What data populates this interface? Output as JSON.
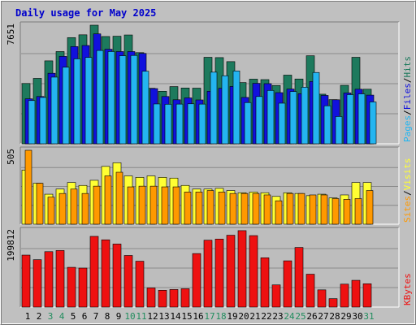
{
  "title": "Daily usage for May 2025",
  "colors": {
    "background": "#C0C0C0",
    "plot_bg": "#BDBDBD",
    "title": "#0000CC",
    "weekday_label": "#000000",
    "weekend_label": "#218D5E",
    "hits": "#1D7A5D",
    "files": "#1111DD",
    "pages": "#24B5F0",
    "visits": "#FFFF33",
    "sites": "#FF9900",
    "kbytes": "#EE1111"
  },
  "chart_data": {
    "type": "bar",
    "title": "Daily usage for May 2025",
    "categories": [
      "1",
      "2",
      "3",
      "4",
      "5",
      "6",
      "7",
      "8",
      "9",
      "10",
      "11",
      "12",
      "13",
      "14",
      "15",
      "16",
      "17",
      "18",
      "19",
      "20",
      "21",
      "22",
      "23",
      "24",
      "25",
      "26",
      "27",
      "28",
      "29",
      "30",
      "31"
    ],
    "weekend_days": [
      "3",
      "4",
      "10",
      "11",
      "17",
      "18",
      "24",
      "25",
      "31"
    ],
    "panels": [
      {
        "id": "hits_files_pages",
        "ylabel": "Pages / Files / Hits",
        "ylabel_parts": [
          "Pages",
          "/",
          "Files",
          "/",
          "Hits"
        ],
        "max_label": "7651",
        "ylim": [
          0,
          7651
        ],
        "series": [
          {
            "name": "Hits",
            "values": [
              3890,
              4220,
              5350,
              5950,
              6850,
              7030,
              7651,
              6920,
              6940,
              7020,
              5880,
              3580,
              3390,
              3690,
              3600,
              3590,
              5580,
              5560,
              5300,
              3950,
              4170,
              4140,
              3760,
              4430,
              4180,
              5680,
              3200,
              2850,
              3770,
              5580,
              3520
            ]
          },
          {
            "name": "Files",
            "values": [
              2900,
              3050,
              4550,
              5640,
              6270,
              6340,
              7090,
              6100,
              5950,
              5950,
              5830,
              3560,
              3050,
              2840,
              2960,
              2830,
              3390,
              3580,
              3700,
              2990,
              3900,
              3880,
              3300,
              3530,
              3230,
              4020,
              3120,
              2840,
              3280,
              3520,
              3140
            ]
          },
          {
            "name": "Pages",
            "values": [
              2790,
              2990,
              4300,
              4940,
              5480,
              5570,
              6020,
              5950,
              5680,
              5700,
              4680,
              2570,
              2550,
              2560,
              2580,
              2560,
              4620,
              4390,
              4700,
              2660,
              3050,
              3440,
              2620,
              3370,
              3650,
              4600,
              2450,
              1760,
              3170,
              3220,
              2700
            ]
          }
        ]
      },
      {
        "id": "visits_sites",
        "ylabel": "Sites / Visits",
        "ylabel_parts": [
          "Sites",
          "/",
          "Visits"
        ],
        "max_label": "505",
        "ylim": [
          0,
          505
        ],
        "series": [
          {
            "name": "Visits",
            "values": [
              370,
              280,
              205,
              240,
              285,
              265,
              300,
              395,
              420,
              330,
              320,
              330,
              320,
              315,
              265,
              240,
              240,
              245,
              230,
              215,
              220,
              215,
              190,
              215,
              210,
              195,
              205,
              180,
              200,
              285,
              285
            ]
          },
          {
            "name": "Sites",
            "values": [
              505,
              280,
              185,
              210,
              240,
              210,
              260,
              330,
              355,
              255,
              260,
              260,
              255,
              255,
              220,
              220,
              230,
              220,
              210,
              210,
              210,
              200,
              160,
              210,
              210,
              200,
              200,
              175,
              170,
              175,
              230
            ]
          }
        ]
      },
      {
        "id": "kbytes",
        "ylabel": "KBytes",
        "ylabel_parts": [
          "KBytes"
        ],
        "max_label": "199812",
        "ylim": [
          0,
          199812
        ],
        "series": [
          {
            "name": "KBytes",
            "values": [
              136000,
              124000,
              145000,
              148000,
              104000,
              102000,
              185000,
              176000,
              165000,
              135000,
              120000,
              50000,
              44000,
              46000,
              48000,
              140000,
              175000,
              178000,
              188000,
              200000,
              187000,
              129000,
              58000,
              121000,
              156000,
              86000,
              45000,
              22000,
              60000,
              70000,
              61000
            ]
          }
        ]
      }
    ]
  }
}
